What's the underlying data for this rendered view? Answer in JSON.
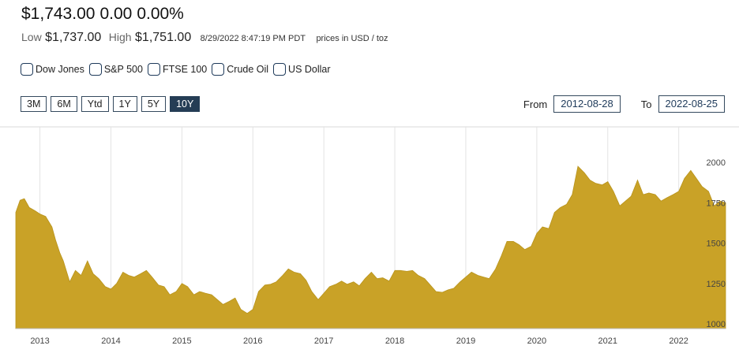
{
  "quote": {
    "price": "$1,743.00",
    "change": "0.00",
    "change_pct": "0.00%",
    "low_label": "Low",
    "low": "$1,737.00",
    "high_label": "High",
    "high": "$1,751.00",
    "timestamp": "8/29/2022 8:47:19 PM PDT",
    "unit_note": "prices in USD / toz"
  },
  "compare": [
    "Dow Jones",
    "S&P 500",
    "FTSE 100",
    "Crude Oil",
    "US Dollar"
  ],
  "range_buttons": [
    "3M",
    "6M",
    "Ytd",
    "1Y",
    "5Y",
    "10Y"
  ],
  "active_range": "10Y",
  "date_range": {
    "from_label": "From",
    "from": "2012-08-28",
    "to_label": "To",
    "to": "2022-08-25"
  },
  "chart_data": {
    "type": "area",
    "color": "#c9a227",
    "x_ticks": [
      "2013",
      "2014",
      "2015",
      "2016",
      "2017",
      "2018",
      "2019",
      "2020",
      "2021",
      "2022"
    ],
    "y_ticks": [
      1000,
      1250,
      1500,
      1750,
      2000
    ],
    "ylim": [
      1000,
      2100
    ],
    "grid": "vertical",
    "series": [
      {
        "x": [
          2012.66,
          2012.72,
          2012.78,
          2012.85,
          2012.93,
          2013.0,
          2013.08,
          2013.17,
          2013.22,
          2013.28,
          2013.33,
          2013.42,
          2013.5,
          2013.58,
          2013.67,
          2013.75,
          2013.83,
          2013.92,
          2014.0,
          2014.08,
          2014.17,
          2014.25,
          2014.33,
          2014.42,
          2014.5,
          2014.58,
          2014.67,
          2014.75,
          2014.83,
          2014.92,
          2015.0,
          2015.08,
          2015.17,
          2015.25,
          2015.33,
          2015.42,
          2015.5,
          2015.58,
          2015.67,
          2015.75,
          2015.83,
          2015.92,
          2016.0,
          2016.08,
          2016.17,
          2016.25,
          2016.33,
          2016.42,
          2016.5,
          2016.58,
          2016.67,
          2016.75,
          2016.83,
          2016.92,
          2017.0,
          2017.08,
          2017.17,
          2017.25,
          2017.33,
          2017.42,
          2017.5,
          2017.58,
          2017.67,
          2017.75,
          2017.83,
          2017.92,
          2018.0,
          2018.08,
          2018.17,
          2018.25,
          2018.33,
          2018.42,
          2018.5,
          2018.58,
          2018.67,
          2018.75,
          2018.83,
          2018.92,
          2019.0,
          2019.08,
          2019.17,
          2019.25,
          2019.33,
          2019.42,
          2019.5,
          2019.58,
          2019.67,
          2019.75,
          2019.83,
          2019.92,
          2020.0,
          2020.08,
          2020.17,
          2020.25,
          2020.33,
          2020.42,
          2020.5,
          2020.58,
          2020.67,
          2020.75,
          2020.83,
          2020.92,
          2021.0,
          2021.08,
          2021.17,
          2021.25,
          2021.33,
          2021.42,
          2021.5,
          2021.58,
          2021.67,
          2021.75,
          2021.83,
          2021.92,
          2022.0,
          2022.08,
          2022.17,
          2022.25,
          2022.33,
          2022.42,
          2022.5,
          2022.58,
          2022.66
        ],
        "y": [
          1690,
          1765,
          1775,
          1720,
          1700,
          1680,
          1665,
          1600,
          1520,
          1440,
          1390,
          1260,
          1330,
          1300,
          1390,
          1310,
          1280,
          1230,
          1215,
          1250,
          1320,
          1300,
          1290,
          1310,
          1330,
          1290,
          1240,
          1230,
          1180,
          1200,
          1250,
          1230,
          1180,
          1200,
          1190,
          1180,
          1150,
          1120,
          1140,
          1160,
          1090,
          1065,
          1090,
          1200,
          1240,
          1245,
          1260,
          1300,
          1340,
          1320,
          1310,
          1270,
          1200,
          1150,
          1190,
          1230,
          1245,
          1265,
          1245,
          1260,
          1235,
          1280,
          1320,
          1280,
          1285,
          1265,
          1330,
          1330,
          1325,
          1330,
          1300,
          1280,
          1240,
          1200,
          1195,
          1210,
          1220,
          1260,
          1290,
          1320,
          1300,
          1290,
          1280,
          1340,
          1420,
          1510,
          1510,
          1490,
          1460,
          1480,
          1560,
          1600,
          1590,
          1690,
          1720,
          1740,
          1800,
          1975,
          1935,
          1890,
          1870,
          1860,
          1880,
          1820,
          1730,
          1760,
          1790,
          1890,
          1800,
          1810,
          1800,
          1760,
          1780,
          1800,
          1820,
          1900,
          1950,
          1900,
          1850,
          1820,
          1730,
          1760,
          1750
        ]
      }
    ]
  }
}
